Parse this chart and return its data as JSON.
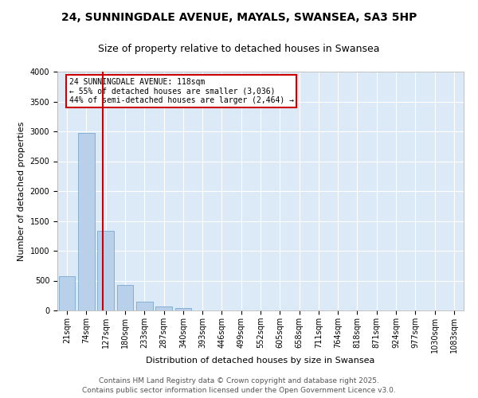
{
  "title1": "24, SUNNINGDALE AVENUE, MAYALS, SWANSEA, SA3 5HP",
  "title2": "Size of property relative to detached houses in Swansea",
  "xlabel": "Distribution of detached houses by size in Swansea",
  "ylabel": "Number of detached properties",
  "bar_categories": [
    "21sqm",
    "74sqm",
    "127sqm",
    "180sqm",
    "233sqm",
    "287sqm",
    "340sqm",
    "393sqm",
    "446sqm",
    "499sqm",
    "552sqm",
    "605sqm",
    "658sqm",
    "711sqm",
    "764sqm",
    "818sqm",
    "871sqm",
    "924sqm",
    "977sqm",
    "1030sqm",
    "1083sqm"
  ],
  "bar_values": [
    580,
    2970,
    1340,
    430,
    150,
    70,
    40,
    5,
    0,
    0,
    0,
    0,
    0,
    0,
    0,
    0,
    0,
    0,
    0,
    0,
    0
  ],
  "bar_color": "#b8d0ea",
  "bar_edge_color": "#6a9fc8",
  "bar_edge_width": 0.5,
  "plot_bg_color": "#dce9f7",
  "fig_bg_color": "#ffffff",
  "grid_color": "#ffffff",
  "ylim": [
    0,
    4000
  ],
  "yticks": [
    0,
    500,
    1000,
    1500,
    2000,
    2500,
    3000,
    3500,
    4000
  ],
  "property_line_x": 1.85,
  "property_line_color": "#cc0000",
  "annotation_text": "24 SUNNINGDALE AVENUE: 118sqm\n← 55% of detached houses are smaller (3,036)\n44% of semi-detached houses are larger (2,464) →",
  "annotation_box_color": "#cc0000",
  "annotation_text_color": "#000000",
  "footer_line1": "Contains HM Land Registry data © Crown copyright and database right 2025.",
  "footer_line2": "Contains public sector information licensed under the Open Government Licence v3.0.",
  "title1_fontsize": 10,
  "title2_fontsize": 9,
  "axis_label_fontsize": 8,
  "tick_fontsize": 7,
  "annot_fontsize": 7,
  "footer_fontsize": 6.5
}
